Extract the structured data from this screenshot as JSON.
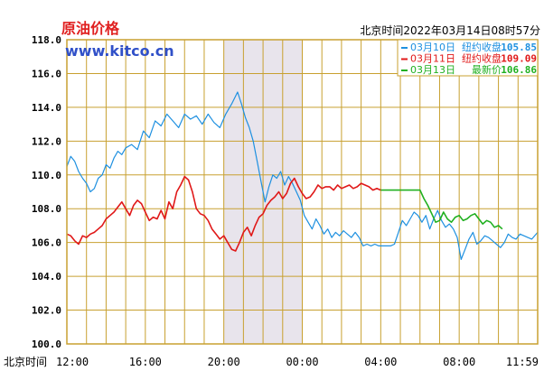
{
  "chart_data": {
    "type": "line",
    "title": "原油价格",
    "subtitle": "www.kitco.cn",
    "timestamp": "北京时间2022年03月14日08时57分",
    "xlabel": "北京时间",
    "ylabel": "",
    "ylim": [
      100.0,
      118.0
    ],
    "yticks": [
      "100.0",
      "102.0",
      "104.0",
      "106.0",
      "108.0",
      "110.0",
      "112.0",
      "114.0",
      "116.0",
      "118.0"
    ],
    "xticks": [
      "12:00",
      "16:00",
      "20:00",
      "00:00",
      "04:00",
      "08:00",
      "11:59"
    ],
    "x_range_hours": [
      0,
      24
    ],
    "grid": true,
    "legend_position": "top-right",
    "shaded_region_hours": [
      8.0,
      12.0
    ],
    "colors": {
      "frame": "#c8a030",
      "shade": "#e8e4ec",
      "title": "#e02020",
      "site": "#3050c8"
    },
    "series": [
      {
        "date": "03月10日",
        "status": "纽约收盘",
        "value": "105.85",
        "color": "#1e90e0",
        "x": [
          0.0,
          0.2,
          0.4,
          0.6,
          0.8,
          1.0,
          1.2,
          1.4,
          1.6,
          1.8,
          2.0,
          2.2,
          2.4,
          2.6,
          2.8,
          3.0,
          3.3,
          3.6,
          3.9,
          4.2,
          4.5,
          4.8,
          5.1,
          5.4,
          5.7,
          6.0,
          6.3,
          6.6,
          6.9,
          7.2,
          7.5,
          7.8,
          8.1,
          8.4,
          8.7,
          8.9,
          9.1,
          9.3,
          9.5,
          9.7,
          9.9,
          10.1,
          10.3,
          10.5,
          10.7,
          10.9,
          11.1,
          11.3,
          11.5,
          11.7,
          11.9,
          12.1,
          12.3,
          12.5,
          12.7,
          12.9,
          13.1,
          13.3,
          13.5,
          13.7,
          13.9,
          14.1,
          14.3,
          14.5,
          14.7,
          14.9,
          15.1,
          15.3,
          15.5,
          15.7,
          15.9,
          16.1,
          16.3,
          16.5,
          16.7,
          16.9,
          17.1,
          17.3,
          17.5,
          17.7,
          17.9,
          18.1,
          18.3,
          18.5,
          18.7,
          18.9,
          19.1,
          19.3,
          19.5,
          19.7,
          19.9,
          20.1,
          20.3,
          20.5,
          20.7,
          20.9,
          21.1,
          21.3,
          21.5,
          21.7,
          21.9,
          22.1,
          22.3,
          22.5,
          22.7,
          22.9,
          23.1,
          23.3,
          23.5,
          23.7,
          24.0
        ],
        "y": [
          110.5,
          111.1,
          110.8,
          110.2,
          109.8,
          109.5,
          109.0,
          109.2,
          109.8,
          110.0,
          110.6,
          110.4,
          111.0,
          111.4,
          111.2,
          111.6,
          111.8,
          111.5,
          112.6,
          112.2,
          113.2,
          112.9,
          113.6,
          113.2,
          112.8,
          113.6,
          113.3,
          113.5,
          113.0,
          113.6,
          113.1,
          112.8,
          113.6,
          114.2,
          114.9,
          114.2,
          113.4,
          112.8,
          112.0,
          110.8,
          109.6,
          108.4,
          109.3,
          110.0,
          109.8,
          110.2,
          109.4,
          109.9,
          109.5,
          109.0,
          108.5,
          107.6,
          107.2,
          106.8,
          107.4,
          107.0,
          106.5,
          106.8,
          106.3,
          106.6,
          106.4,
          106.7,
          106.5,
          106.3,
          106.6,
          106.3,
          105.8,
          105.9,
          105.8,
          105.9,
          105.8,
          105.8,
          105.8,
          105.8,
          105.9,
          106.6,
          107.3,
          107.0,
          107.4,
          107.8,
          107.6,
          107.2,
          107.6,
          106.8,
          107.4,
          107.9,
          107.3,
          106.9,
          107.1,
          106.8,
          106.3,
          105.0,
          105.6,
          106.2,
          106.6,
          105.9,
          106.1,
          106.4,
          106.3,
          106.1,
          105.9,
          105.7,
          106.0,
          106.5,
          106.3,
          106.2,
          106.5,
          106.4,
          106.3,
          106.2,
          106.6
        ]
      },
      {
        "date": "03月11日",
        "status": "纽约收盘",
        "value": "109.09",
        "color": "#e01818",
        "x": [
          0.0,
          0.2,
          0.4,
          0.6,
          0.8,
          1.0,
          1.2,
          1.4,
          1.6,
          1.8,
          2.0,
          2.2,
          2.4,
          2.6,
          2.8,
          3.0,
          3.2,
          3.4,
          3.6,
          3.8,
          4.0,
          4.2,
          4.4,
          4.6,
          4.8,
          5.0,
          5.2,
          5.4,
          5.6,
          5.8,
          6.0,
          6.2,
          6.4,
          6.6,
          6.8,
          7.0,
          7.2,
          7.4,
          7.6,
          7.8,
          8.0,
          8.2,
          8.4,
          8.6,
          8.8,
          9.0,
          9.2,
          9.4,
          9.6,
          9.8,
          10.0,
          10.2,
          10.4,
          10.6,
          10.8,
          11.0,
          11.2,
          11.4,
          11.6,
          11.8,
          12.0,
          12.2,
          12.4,
          12.6,
          12.8,
          13.0,
          13.2,
          13.4,
          13.6,
          13.8,
          14.0,
          14.2,
          14.4,
          14.6,
          14.8,
          15.0,
          15.2,
          15.4,
          15.6,
          15.8,
          16.0
        ],
        "y": [
          106.5,
          106.4,
          106.1,
          105.9,
          106.4,
          106.3,
          106.5,
          106.6,
          106.8,
          107.0,
          107.4,
          107.6,
          107.8,
          108.1,
          108.4,
          108.0,
          107.6,
          108.2,
          108.5,
          108.3,
          107.8,
          107.3,
          107.5,
          107.4,
          107.9,
          107.4,
          108.4,
          108.0,
          109.0,
          109.4,
          109.9,
          109.7,
          109.0,
          108.0,
          107.7,
          107.6,
          107.3,
          106.8,
          106.5,
          106.2,
          106.4,
          106.0,
          105.6,
          105.5,
          106.0,
          106.6,
          106.9,
          106.4,
          107.0,
          107.5,
          107.7,
          108.2,
          108.5,
          108.7,
          109.0,
          108.6,
          108.9,
          109.5,
          109.8,
          109.3,
          108.9,
          108.6,
          108.7,
          109.0,
          109.4,
          109.2,
          109.3,
          109.3,
          109.1,
          109.4,
          109.2,
          109.3,
          109.4,
          109.2,
          109.3,
          109.5,
          109.4,
          109.3,
          109.1,
          109.2,
          109.1
        ]
      },
      {
        "date": "03月13日",
        "status": "最新价",
        "value": "106.86",
        "color": "#20b020",
        "x": [
          16.0,
          16.4,
          16.8,
          17.2,
          17.6,
          18.0,
          18.2,
          18.4,
          18.6,
          18.8,
          19.0,
          19.2,
          19.4,
          19.6,
          19.8,
          20.0,
          20.2,
          20.4,
          20.6,
          20.8,
          21.0,
          21.2,
          21.4,
          21.6,
          21.8,
          22.0,
          22.2
        ],
        "y": [
          109.1,
          109.1,
          109.1,
          109.1,
          109.1,
          109.1,
          108.6,
          108.2,
          107.7,
          107.2,
          107.3,
          107.8,
          107.4,
          107.2,
          107.5,
          107.6,
          107.3,
          107.4,
          107.6,
          107.7,
          107.4,
          107.1,
          107.3,
          107.2,
          106.9,
          107.0,
          106.8
        ]
      }
    ]
  }
}
